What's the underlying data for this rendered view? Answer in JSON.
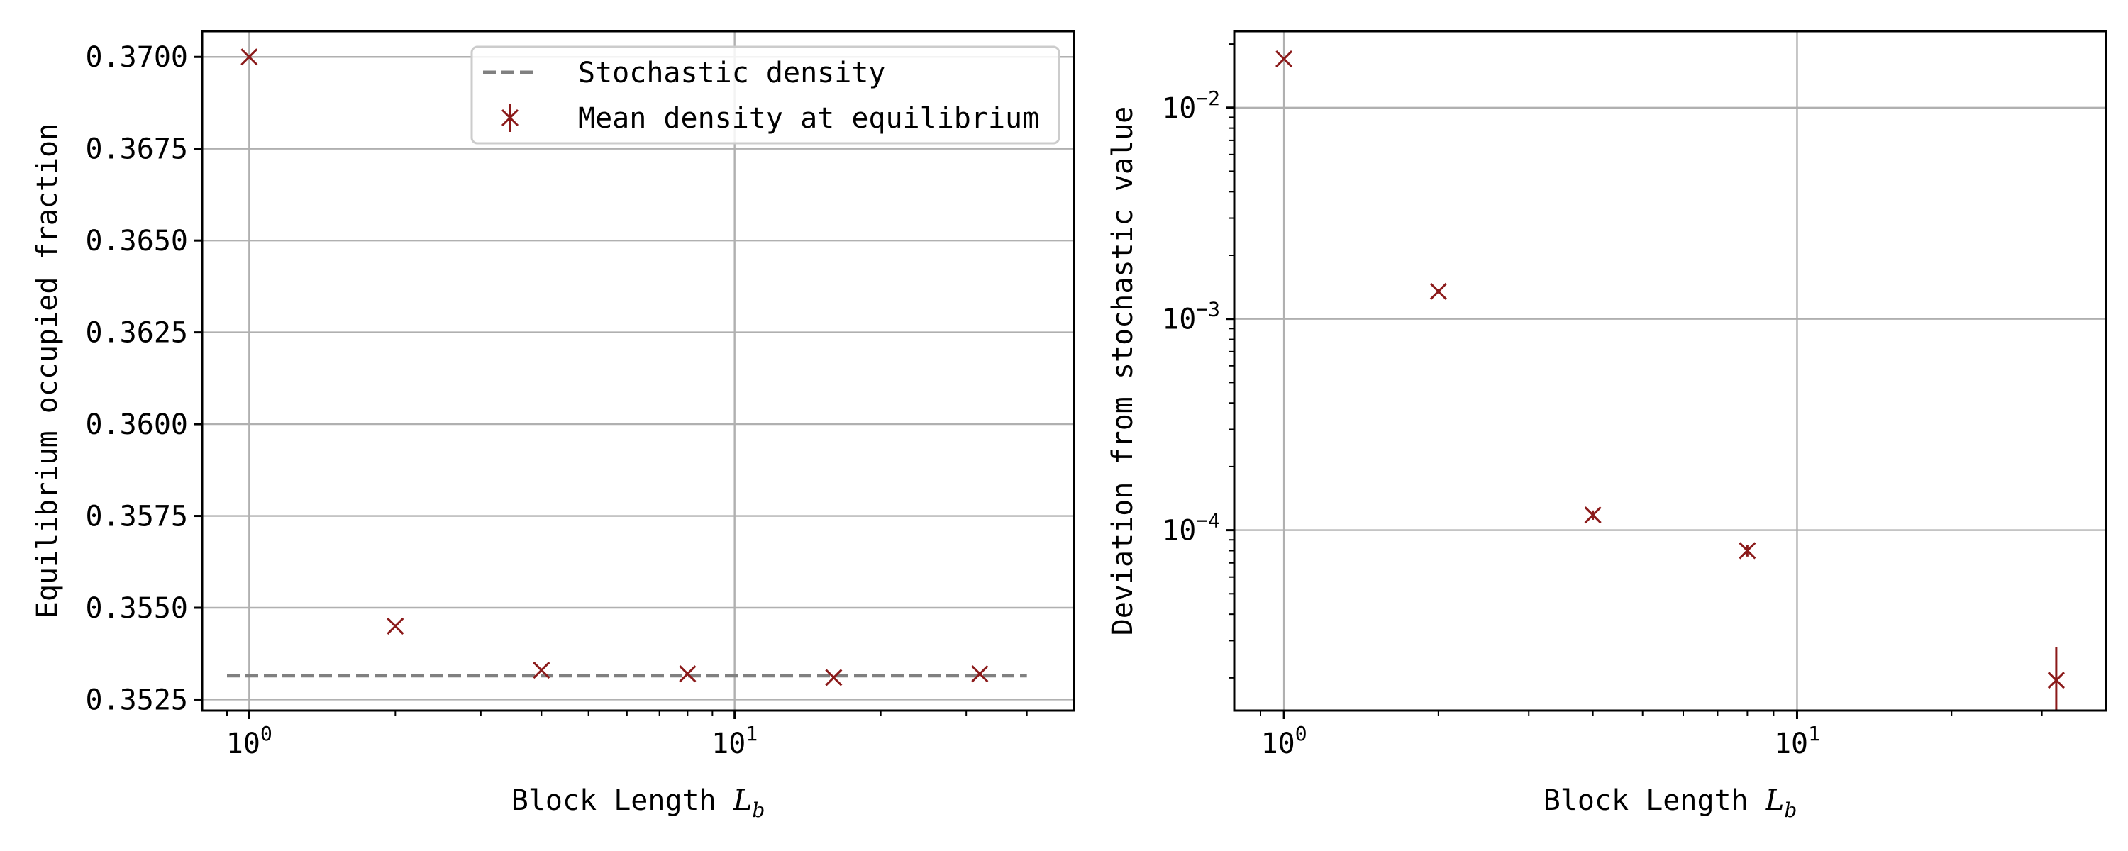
{
  "chart_data": [
    {
      "type": "scatter",
      "xscale": "log",
      "yscale": "linear",
      "xlim": [
        0.8,
        50
      ],
      "ylim": [
        0.3522,
        0.3707
      ],
      "xticks": [
        {
          "value": 1,
          "base": "10",
          "exp": "0"
        },
        {
          "value": 10,
          "base": "10",
          "exp": "1"
        }
      ],
      "yticks": [
        {
          "value": 0.3525,
          "label": "0.3525"
        },
        {
          "value": 0.355,
          "label": "0.3550"
        },
        {
          "value": 0.3575,
          "label": "0.3575"
        },
        {
          "value": 0.36,
          "label": "0.3600"
        },
        {
          "value": 0.3625,
          "label": "0.3625"
        },
        {
          "value": 0.365,
          "label": "0.3650"
        },
        {
          "value": 0.3675,
          "label": "0.3675"
        },
        {
          "value": 0.37,
          "label": "0.3700"
        }
      ],
      "xlabel": {
        "main": "Block Length ",
        "var": "L",
        "sub": "b"
      },
      "ylabel": "Equilibrium occupied fraction",
      "grid": true,
      "legend": {
        "position": "top-right",
        "entries": [
          {
            "label": "Stochastic density",
            "kind": "dashed-line",
            "color": "#808080"
          },
          {
            "label": "Mean density at equilibrium",
            "kind": "errorbar-marker",
            "color": "#8b1a1a"
          }
        ]
      },
      "reference_line": {
        "name": "Stochastic density",
        "y": 0.35315,
        "x_range": [
          0.9,
          40
        ],
        "color": "#808080"
      },
      "series": [
        {
          "name": "Mean density at equilibrium",
          "marker": "x",
          "color": "#8b1a1a",
          "x": [
            1,
            2,
            4,
            8,
            16,
            32
          ],
          "y": [
            0.37,
            0.3545,
            0.3533,
            0.3532,
            0.3531,
            0.3532
          ],
          "yerr": [
            5e-05,
            5e-05,
            5e-05,
            5e-05,
            5e-05,
            5e-05
          ]
        }
      ]
    },
    {
      "type": "scatter",
      "xscale": "log",
      "yscale": "log",
      "xlim": [
        0.8,
        40
      ],
      "ylim": [
        1.4e-05,
        0.023
      ],
      "xticks": [
        {
          "value": 1,
          "base": "10",
          "exp": "0"
        },
        {
          "value": 10,
          "base": "10",
          "exp": "1"
        }
      ],
      "yticks": [
        {
          "value": 0.0001,
          "base": "10",
          "exp": "−4"
        },
        {
          "value": 0.001,
          "base": "10",
          "exp": "−3"
        },
        {
          "value": 0.01,
          "base": "10",
          "exp": "−2"
        }
      ],
      "xlabel": {
        "main": "Block Length ",
        "var": "L",
        "sub": "b"
      },
      "ylabel": "Deviation from stochastic value",
      "grid": true,
      "series": [
        {
          "name": "",
          "marker": "x",
          "color": "#8b1a1a",
          "x": [
            1,
            2,
            4,
            8,
            32
          ],
          "y": [
            0.017,
            0.00135,
            0.000118,
            8e-05,
            1.95e-05
          ],
          "yerr_low": [
            0.0002,
            3e-05,
            6e-06,
            5e-06,
            7.5e-06
          ],
          "yerr_high": [
            0.0002,
            3e-05,
            6e-06,
            5e-06,
            8.5e-06
          ]
        }
      ]
    }
  ]
}
